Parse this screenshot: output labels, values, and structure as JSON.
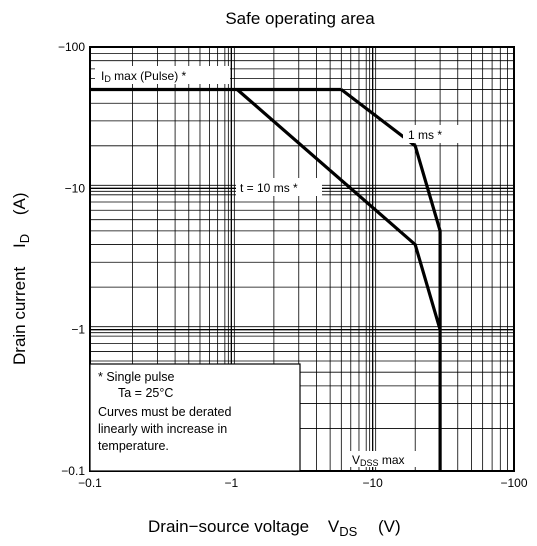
{
  "chart_data": {
    "type": "line",
    "title": "Safe operating area",
    "xlabel": {
      "main": "Drain−source voltage",
      "sym": "V",
      "sub": "DS",
      "unit": "(V)"
    },
    "ylabel": {
      "main": "Drain current",
      "sym": "I",
      "sub": "D",
      "unit": "(A)"
    },
    "x_scale": "log",
    "y_scale": "log",
    "xlim": [
      0.1,
      100
    ],
    "ylim": [
      0.1,
      100
    ],
    "x_ticks": [
      {
        "value": 0.1,
        "label": "−0.1"
      },
      {
        "value": 1,
        "label": "−1"
      },
      {
        "value": 10,
        "label": "−10"
      },
      {
        "value": 100,
        "label": "−100"
      }
    ],
    "y_ticks": [
      {
        "value": 100,
        "label": "−100"
      },
      {
        "value": 10,
        "label": "−10"
      },
      {
        "value": 1,
        "label": "−1"
      },
      {
        "value": 0.1,
        "label": "−0.1"
      }
    ],
    "grid": true,
    "series": [
      {
        "name": "ID max (Pulse) *",
        "x": [
          0.1,
          6
        ],
        "y": [
          50,
          50
        ]
      },
      {
        "name": "1 ms *",
        "x": [
          6,
          20,
          30,
          30
        ],
        "y": [
          50,
          20,
          5,
          1
        ]
      },
      {
        "name": "t = 10 ms *",
        "x": [
          1.1,
          20,
          30,
          30
        ],
        "y": [
          50,
          4,
          1,
          0.1
        ]
      }
    ],
    "annotations": {
      "id_max": {
        "main": "I",
        "sub": "D",
        "rest": " max (Pulse) *"
      },
      "one_ms": "1 ms *",
      "ten_ms": "t = 10 ms *",
      "vdss": {
        "main": "V",
        "sub": "DSS",
        "rest": " max"
      }
    },
    "note_lines": [
      "*   Single pulse",
      "Ta = 25°C",
      "Curves must be derated",
      "linearly with increase in",
      "temperature."
    ]
  }
}
